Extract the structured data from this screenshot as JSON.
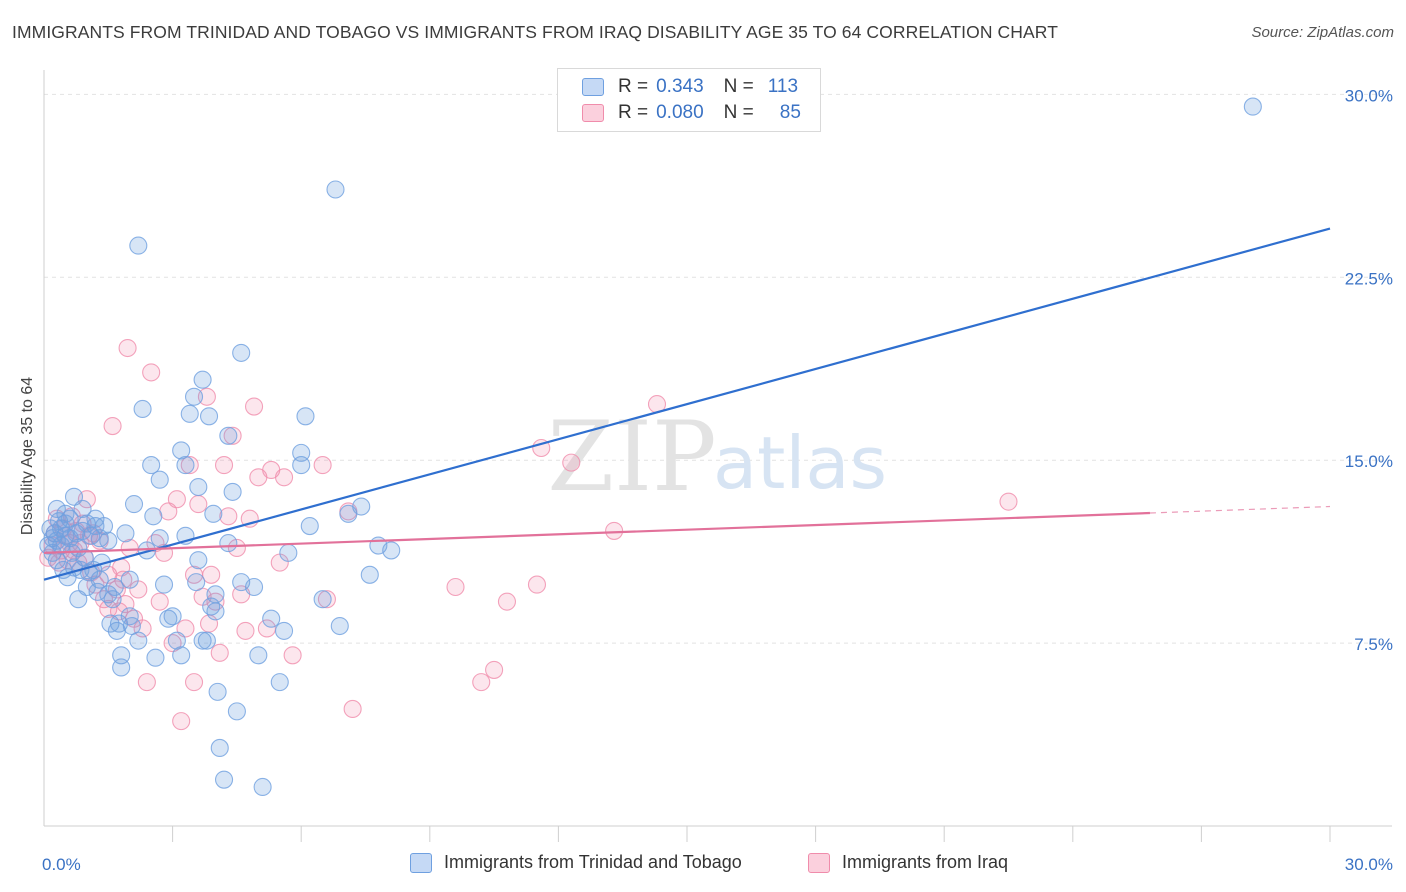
{
  "title": "IMMIGRANTS FROM TRINIDAD AND TOBAGO VS IMMIGRANTS FROM IRAQ DISABILITY AGE 35 TO 64 CORRELATION CHART",
  "source": "Source: ZipAtlas.com",
  "watermark": {
    "zip": "ZIP",
    "atlas": "atlas"
  },
  "legend_top": [
    {
      "r_label": "R =",
      "r_value": "0.343",
      "n_label": "N =",
      "n_value": "113",
      "color": "#6fa0e0"
    },
    {
      "r_label": "R =",
      "r_value": "0.080",
      "n_label": "N =",
      "n_value": "85",
      "color": "#f08cab"
    }
  ],
  "legend_bottom": [
    {
      "label": "Immigrants from Trinidad and Tobago",
      "color": "#6fa0e0"
    },
    {
      "label": "Immigrants from Iraq",
      "color": "#f08cab"
    }
  ],
  "chart_data": {
    "type": "scatter",
    "xlabel": "",
    "ylabel": "Disability Age 35 to 64",
    "xlim": [
      0,
      30
    ],
    "ylim": [
      0,
      31
    ],
    "x_tick_labels": [
      {
        "value": 0,
        "label": "0.0%"
      },
      {
        "value": 30,
        "label": "30.0%"
      }
    ],
    "y_tick_labels": [
      {
        "value": 7.5,
        "label": "7.5%"
      },
      {
        "value": 15,
        "label": "15.0%"
      },
      {
        "value": 22.5,
        "label": "22.5%"
      },
      {
        "value": 30,
        "label": "30.0%"
      }
    ],
    "x_minor_ticks": [
      3,
      6,
      9,
      12,
      15,
      18,
      21,
      24,
      27,
      30
    ],
    "grid": "horizontal dashed",
    "series": [
      {
        "name": "Immigrants from Trinidad and Tobago",
        "color": "#6fa0e0",
        "trend": {
          "x0": 0,
          "y0": 10.1,
          "x1": 30,
          "y1": 24.5,
          "dashed_from": null
        },
        "points": [
          [
            0.1,
            11.5
          ],
          [
            0.15,
            12.2
          ],
          [
            0.2,
            11.8
          ],
          [
            0.2,
            11.2
          ],
          [
            0.25,
            12.0
          ],
          [
            0.3,
            13.0
          ],
          [
            0.3,
            11.7
          ],
          [
            0.35,
            12.5
          ],
          [
            0.4,
            11.5
          ],
          [
            0.4,
            12.2
          ],
          [
            0.45,
            10.5
          ],
          [
            0.5,
            11.9
          ],
          [
            0.5,
            12.8
          ],
          [
            0.55,
            10.2
          ],
          [
            0.6,
            11.8
          ],
          [
            0.6,
            12.6
          ],
          [
            0.65,
            11.2
          ],
          [
            0.7,
            10.6
          ],
          [
            0.7,
            13.5
          ],
          [
            0.75,
            12.0
          ],
          [
            0.8,
            9.3
          ],
          [
            0.8,
            11.4
          ],
          [
            0.85,
            10.5
          ],
          [
            0.9,
            12.1
          ],
          [
            0.9,
            13.0
          ],
          [
            0.95,
            11.0
          ],
          [
            1.0,
            9.8
          ],
          [
            1.0,
            12.4
          ],
          [
            1.05,
            10.4
          ],
          [
            1.1,
            11.9
          ],
          [
            1.15,
            10.5
          ],
          [
            1.2,
            12.3
          ],
          [
            1.25,
            9.6
          ],
          [
            1.3,
            11.8
          ],
          [
            1.3,
            10.1
          ],
          [
            1.35,
            10.8
          ],
          [
            1.4,
            12.3
          ],
          [
            1.5,
            9.5
          ],
          [
            1.5,
            11.7
          ],
          [
            1.55,
            8.3
          ],
          [
            1.6,
            9.3
          ],
          [
            1.65,
            9.8
          ],
          [
            1.7,
            8.0
          ],
          [
            1.75,
            8.3
          ],
          [
            1.8,
            7.0
          ],
          [
            1.8,
            6.5
          ],
          [
            1.9,
            12.0
          ],
          [
            2.0,
            10.1
          ],
          [
            2.0,
            8.6
          ],
          [
            2.05,
            8.2
          ],
          [
            2.1,
            13.2
          ],
          [
            2.2,
            7.6
          ],
          [
            2.2,
            23.8
          ],
          [
            2.3,
            17.1
          ],
          [
            2.4,
            11.3
          ],
          [
            2.5,
            14.8
          ],
          [
            2.55,
            12.7
          ],
          [
            2.6,
            6.9
          ],
          [
            2.7,
            14.2
          ],
          [
            2.8,
            9.9
          ],
          [
            2.9,
            8.5
          ],
          [
            3.0,
            8.6
          ],
          [
            3.1,
            7.6
          ],
          [
            3.2,
            7.0
          ],
          [
            3.2,
            15.4
          ],
          [
            3.3,
            14.8
          ],
          [
            3.3,
            11.9
          ],
          [
            3.4,
            16.9
          ],
          [
            3.5,
            17.6
          ],
          [
            3.55,
            10.0
          ],
          [
            3.6,
            13.9
          ],
          [
            3.7,
            18.3
          ],
          [
            3.7,
            7.6
          ],
          [
            3.8,
            7.6
          ],
          [
            3.85,
            16.8
          ],
          [
            3.9,
            9.0
          ],
          [
            3.95,
            12.8
          ],
          [
            4.0,
            8.8
          ],
          [
            4.0,
            9.5
          ],
          [
            4.05,
            5.5
          ],
          [
            4.1,
            3.2
          ],
          [
            4.2,
            1.9
          ],
          [
            4.3,
            16.0
          ],
          [
            4.4,
            13.7
          ],
          [
            4.5,
            4.7
          ],
          [
            4.6,
            10.0
          ],
          [
            4.6,
            19.4
          ],
          [
            4.9,
            9.8
          ],
          [
            5.0,
            7.0
          ],
          [
            5.1,
            1.6
          ],
          [
            5.3,
            8.5
          ],
          [
            5.5,
            5.9
          ],
          [
            5.6,
            8.0
          ],
          [
            5.7,
            11.2
          ],
          [
            6.0,
            14.8
          ],
          [
            6.0,
            15.3
          ],
          [
            6.1,
            16.8
          ],
          [
            6.2,
            12.3
          ],
          [
            6.5,
            9.3
          ],
          [
            6.8,
            26.1
          ],
          [
            6.9,
            8.2
          ],
          [
            7.1,
            12.8
          ],
          [
            7.4,
            13.1
          ],
          [
            7.6,
            10.3
          ],
          [
            7.8,
            11.5
          ],
          [
            8.1,
            11.3
          ],
          [
            28.2,
            29.5
          ],
          [
            0.3,
            10.9
          ],
          [
            0.5,
            12.4
          ],
          [
            1.2,
            12.6
          ],
          [
            2.7,
            11.8
          ],
          [
            3.6,
            10.9
          ],
          [
            4.3,
            11.6
          ]
        ]
      },
      {
        "name": "Immigrants from Iraq",
        "color": "#f08cab",
        "trend": {
          "x0": 0,
          "y0": 11.2,
          "x1": 30,
          "y1": 13.1,
          "dashed_from": 25.8
        },
        "points": [
          [
            0.1,
            11.0
          ],
          [
            0.2,
            11.5
          ],
          [
            0.25,
            12.0
          ],
          [
            0.3,
            12.6
          ],
          [
            0.35,
            10.8
          ],
          [
            0.4,
            11.3
          ],
          [
            0.45,
            12.2
          ],
          [
            0.5,
            11.9
          ],
          [
            0.55,
            10.9
          ],
          [
            0.6,
            11.6
          ],
          [
            0.65,
            12.7
          ],
          [
            0.7,
            11.3
          ],
          [
            0.75,
            12.1
          ],
          [
            0.8,
            10.8
          ],
          [
            0.85,
            11.6
          ],
          [
            0.9,
            12.4
          ],
          [
            0.95,
            11.0
          ],
          [
            1.0,
            13.4
          ],
          [
            1.05,
            11.9
          ],
          [
            1.1,
            10.4
          ],
          [
            1.15,
            12.0
          ],
          [
            1.2,
            9.9
          ],
          [
            1.3,
            11.7
          ],
          [
            1.4,
            9.3
          ],
          [
            1.5,
            10.3
          ],
          [
            1.5,
            8.9
          ],
          [
            1.6,
            16.4
          ],
          [
            1.7,
            9.7
          ],
          [
            1.75,
            8.8
          ],
          [
            1.8,
            10.6
          ],
          [
            1.85,
            10.1
          ],
          [
            1.9,
            9.1
          ],
          [
            1.95,
            19.6
          ],
          [
            2.0,
            11.4
          ],
          [
            2.1,
            8.5
          ],
          [
            2.2,
            9.7
          ],
          [
            2.3,
            8.1
          ],
          [
            2.4,
            5.9
          ],
          [
            2.5,
            18.6
          ],
          [
            2.6,
            11.6
          ],
          [
            2.7,
            9.2
          ],
          [
            2.8,
            11.2
          ],
          [
            2.9,
            12.9
          ],
          [
            3.0,
            7.5
          ],
          [
            3.1,
            13.4
          ],
          [
            3.2,
            4.3
          ],
          [
            3.3,
            8.1
          ],
          [
            3.4,
            14.8
          ],
          [
            3.5,
            5.9
          ],
          [
            3.5,
            10.3
          ],
          [
            3.6,
            13.2
          ],
          [
            3.7,
            9.4
          ],
          [
            3.8,
            17.6
          ],
          [
            3.85,
            8.3
          ],
          [
            3.9,
            10.3
          ],
          [
            4.0,
            9.2
          ],
          [
            4.1,
            7.1
          ],
          [
            4.2,
            14.8
          ],
          [
            4.3,
            12.7
          ],
          [
            4.4,
            16.0
          ],
          [
            4.5,
            11.4
          ],
          [
            4.6,
            9.5
          ],
          [
            4.7,
            8.0
          ],
          [
            4.8,
            12.6
          ],
          [
            4.9,
            17.2
          ],
          [
            5.0,
            14.3
          ],
          [
            5.2,
            8.1
          ],
          [
            5.3,
            14.6
          ],
          [
            5.5,
            10.8
          ],
          [
            5.6,
            14.3
          ],
          [
            5.8,
            7.0
          ],
          [
            6.5,
            14.8
          ],
          [
            6.6,
            9.3
          ],
          [
            7.1,
            12.9
          ],
          [
            7.2,
            4.8
          ],
          [
            9.6,
            9.8
          ],
          [
            10.2,
            5.9
          ],
          [
            10.5,
            6.4
          ],
          [
            10.8,
            9.2
          ],
          [
            11.5,
            9.9
          ],
          [
            11.6,
            15.5
          ],
          [
            12.3,
            14.9
          ],
          [
            13.3,
            12.1
          ],
          [
            14.3,
            17.3
          ],
          [
            22.5,
            13.3
          ]
        ]
      }
    ]
  }
}
